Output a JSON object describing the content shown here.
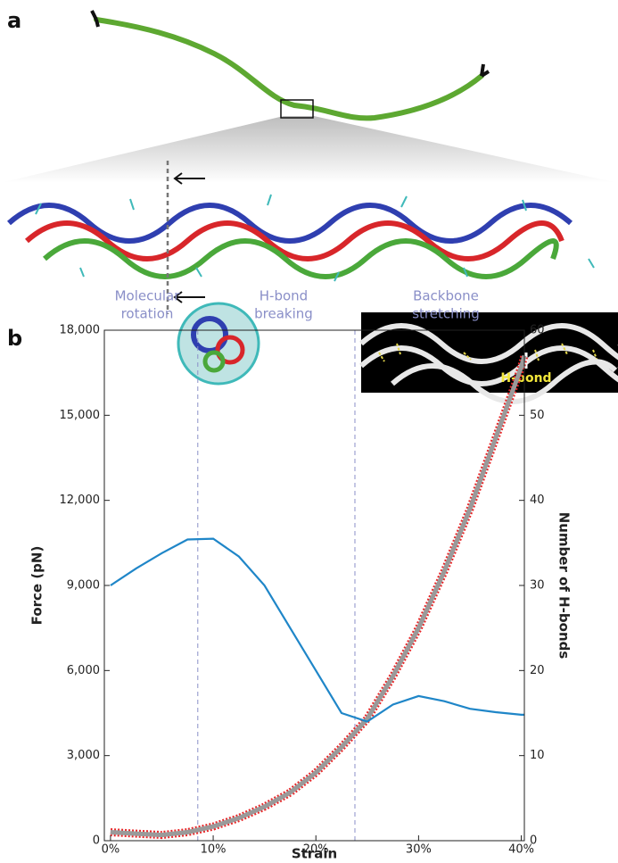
{
  "panels": {
    "a": "a",
    "b": "b"
  },
  "inset_label": "H-bond",
  "chart_data": {
    "type": "line",
    "xlabel": "Strain",
    "ylabel": "Force (pN)",
    "y2label": "Number of H-bonds",
    "regions": [
      [
        "Molecular",
        "rotation"
      ],
      [
        "H-bond",
        "breaking"
      ],
      [
        "Backbone",
        "stretching"
      ]
    ],
    "vlines": [
      8.5,
      23.8
    ],
    "x": [
      0,
      2.5,
      5,
      7.5,
      10,
      12.5,
      15,
      17.5,
      20,
      22.5,
      25,
      27.5,
      30,
      32.5,
      35,
      37.5,
      40,
      40.3
    ],
    "series": [
      {
        "name": "Force",
        "color": "#9a9a9a",
        "edge_color": "#e8282a",
        "axis": "y",
        "values": [
          300,
          250,
          200,
          300,
          500,
          800,
          1200,
          1700,
          2400,
          3300,
          4300,
          5800,
          7500,
          9500,
          11700,
          14200,
          16700,
          17100
        ]
      },
      {
        "name": "H-bonds",
        "color": "#1f86c8",
        "axis": "y2",
        "values": [
          30,
          32,
          33.8,
          35.4,
          35.5,
          33.4,
          30,
          25,
          20,
          15,
          14,
          16,
          17,
          16.4,
          15.5,
          15.1,
          14.8,
          14.8
        ]
      }
    ],
    "xlim": [
      -0.6,
      40.3
    ],
    "ylim": [
      0,
      18000
    ],
    "y2lim": [
      0,
      60
    ],
    "xticks": [
      {
        "value": 0,
        "label": "0%"
      },
      {
        "value": 10,
        "label": "10%"
      },
      {
        "value": 20,
        "label": "20%"
      },
      {
        "value": 30,
        "label": "30%"
      },
      {
        "value": 40,
        "label": "40%"
      }
    ],
    "yticks": [
      0,
      {
        "value": 3000,
        "label": "3,000"
      },
      {
        "value": 6000,
        "label": "6,000"
      },
      {
        "value": 9000,
        "label": "9,000"
      },
      {
        "value": 12000,
        "label": "12,000"
      },
      {
        "value": 15000,
        "label": "15,000"
      },
      {
        "value": 18000,
        "label": "18,000"
      }
    ],
    "y2ticks": [
      0,
      10,
      20,
      30,
      40,
      50,
      60
    ]
  }
}
